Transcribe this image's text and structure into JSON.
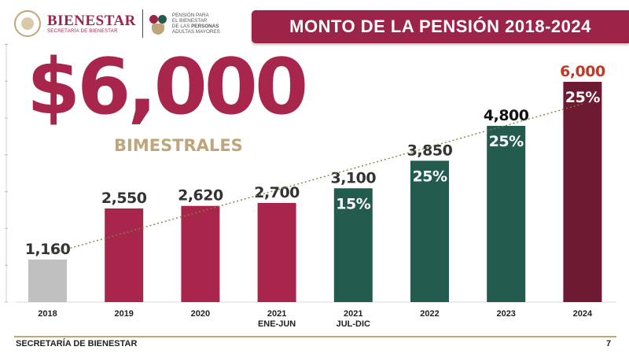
{
  "header": {
    "brand_name": "BIENESTAR",
    "brand_sub": "SECRETARÍA DE BIENESTAR",
    "program_line1": "PENSIÓN PARA",
    "program_line2": "EL BIENESTAR",
    "program_line3_pre": "DE LAS ",
    "program_line3_bold": "PERSONAS",
    "program_line4": "ADULTAS MAYORES",
    "title": "MONTO DE LA PENSIÓN 2018-2024"
  },
  "hero": {
    "amount": "$6,000",
    "period": "BIMESTRALES"
  },
  "chart_data": {
    "type": "bar",
    "categories": [
      {
        "line1": "2018",
        "line2": ""
      },
      {
        "line1": "2019",
        "line2": ""
      },
      {
        "line1": "2020",
        "line2": ""
      },
      {
        "line1": "2021",
        "line2": "ENE-JUN"
      },
      {
        "line1": "2021",
        "line2": "JUL-DIC"
      },
      {
        "line1": "2022",
        "line2": ""
      },
      {
        "line1": "2023",
        "line2": ""
      },
      {
        "line1": "2024",
        "line2": ""
      }
    ],
    "values": [
      1160,
      2550,
      2620,
      2700,
      3100,
      3850,
      4800,
      6000
    ],
    "value_labels": [
      "1,160",
      "2,550",
      "2,620",
      "2,700",
      "3,100",
      "3,850",
      "4,800",
      "6,000"
    ],
    "increase_labels": [
      "",
      "",
      "",
      "",
      "15%",
      "25%",
      "25%",
      "25%"
    ],
    "bar_colors": [
      "#c0c0c0",
      "#a8264b",
      "#a8264b",
      "#a8264b",
      "#235b4e",
      "#235b4e",
      "#235b4e",
      "#6e1a32"
    ],
    "value_label_colors": [
      "#333333",
      "#333333",
      "#333333",
      "#333333",
      "#333333",
      "#333333",
      "#111111",
      "#c0392b"
    ],
    "trendline": true,
    "trendline_color": "#8b7d3a",
    "ylim": [
      0,
      6000
    ],
    "grid": false
  },
  "footer": {
    "text": "SECRETARÍA DE BIENESTAR",
    "page": "7"
  }
}
